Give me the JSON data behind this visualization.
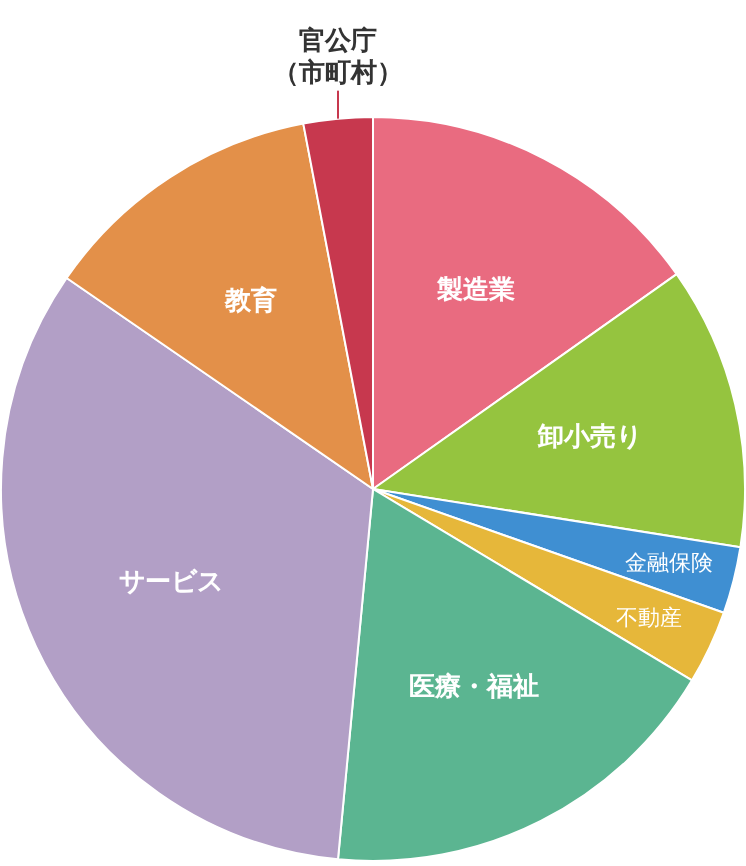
{
  "chart_data": {
    "type": "pie",
    "categories": [
      "製造業",
      "卸小売り",
      "金融保険",
      "不動産",
      "医療・福祉",
      "サービス",
      "教育",
      "官公庁（市町村）"
    ],
    "values": [
      15.2,
      12.3,
      2.9,
      3.2,
      17.9,
      33.1,
      12.4,
      3.0
    ],
    "colors": [
      "#e96b80",
      "#95c43f",
      "#3f8fd2",
      "#e6b73a",
      "#5bb591",
      "#b29fc6",
      "#e39049",
      "#c7384e"
    ],
    "legend": false
  }
}
